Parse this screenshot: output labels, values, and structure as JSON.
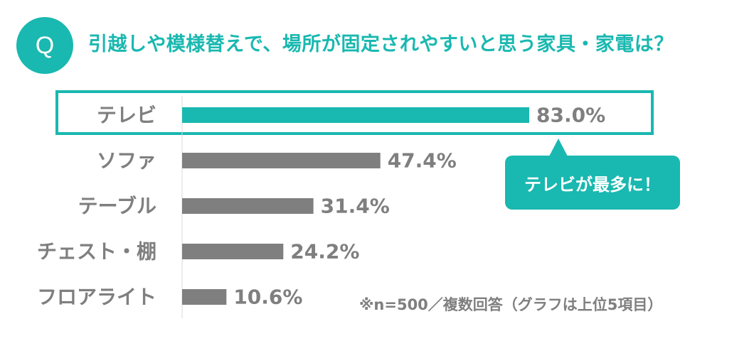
{
  "badge": "Q",
  "question": "引越しや模様替えで、場所が固定されやすいと思う家具・家電は？",
  "callout": "テレビが最多に！",
  "note": "※n=500／複数回答（グラフは上位5項目）",
  "colors": {
    "accent": "#19b8b0",
    "bar": "#7f7f7f",
    "text": "#7f7f7f"
  },
  "chart_data": {
    "type": "bar",
    "orientation": "horizontal",
    "categories": [
      "テレビ",
      "ソファ",
      "テーブル",
      "チェスト・棚",
      "フロアライト"
    ],
    "values": [
      83.0,
      47.4,
      31.4,
      24.2,
      10.6
    ],
    "value_labels": [
      "83.0%",
      "47.4%",
      "31.4%",
      "24.2%",
      "10.6%"
    ],
    "highlight_index": 0,
    "xlim": [
      0,
      100
    ],
    "grid": false
  }
}
